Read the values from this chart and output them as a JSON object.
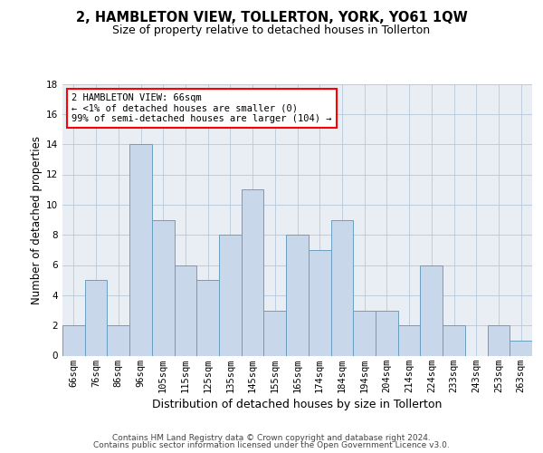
{
  "title": "2, HAMBLETON VIEW, TOLLERTON, YORK, YO61 1QW",
  "subtitle": "Size of property relative to detached houses in Tollerton",
  "xlabel": "Distribution of detached houses by size in Tollerton",
  "ylabel": "Number of detached properties",
  "categories": [
    "66sqm",
    "76sqm",
    "86sqm",
    "96sqm",
    "105sqm",
    "115sqm",
    "125sqm",
    "135sqm",
    "145sqm",
    "155sqm",
    "165sqm",
    "174sqm",
    "184sqm",
    "194sqm",
    "204sqm",
    "214sqm",
    "224sqm",
    "233sqm",
    "243sqm",
    "253sqm",
    "263sqm"
  ],
  "values": [
    2,
    5,
    2,
    14,
    9,
    6,
    5,
    8,
    11,
    3,
    8,
    7,
    9,
    3,
    3,
    2,
    6,
    2,
    0,
    2,
    1
  ],
  "bar_color": "#c8d8ea",
  "bar_edge_color": "#6a9fc0",
  "annotation_text": "2 HAMBLETON VIEW: 66sqm\n← <1% of detached houses are smaller (0)\n99% of semi-detached houses are larger (104) →",
  "ylim": [
    0,
    18
  ],
  "yticks": [
    0,
    2,
    4,
    6,
    8,
    10,
    12,
    14,
    16,
    18
  ],
  "footer_line1": "Contains HM Land Registry data © Crown copyright and database right 2024.",
  "footer_line2": "Contains public sector information licensed under the Open Government Licence v3.0.",
  "background_color": "#e8eef4",
  "grid_color": "#b8c8d8",
  "title_fontsize": 10.5,
  "subtitle_fontsize": 9,
  "axis_label_fontsize": 8.5,
  "tick_fontsize": 7.5,
  "annotation_fontsize": 7.5,
  "footer_fontsize": 6.5
}
